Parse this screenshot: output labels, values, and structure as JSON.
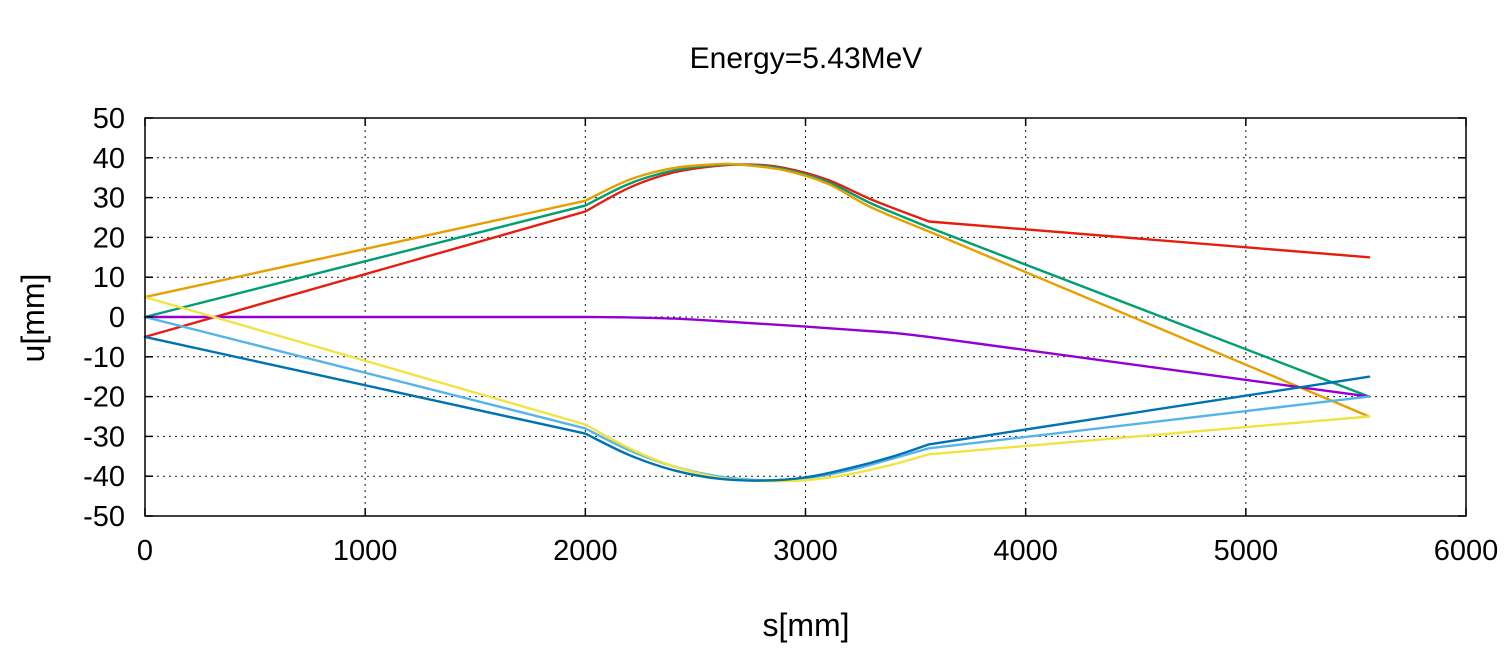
{
  "chart_data": {
    "type": "line",
    "title": "Energy=5.43MeV",
    "xlabel": "s[mm]",
    "ylabel": "u[mm]",
    "xlim": [
      0,
      6000
    ],
    "ylim": [
      -50,
      50
    ],
    "xticks": [
      0,
      1000,
      2000,
      3000,
      4000,
      5000,
      6000
    ],
    "yticks": [
      50,
      40,
      30,
      20,
      10,
      0,
      -10,
      -20,
      -30,
      -40,
      -50
    ],
    "grid": true,
    "legend": "none",
    "series": [
      {
        "color": "#e51e10",
        "points": [
          [
            0,
            -5
          ],
          [
            2000,
            26.5
          ],
          [
            2200,
            32.5
          ],
          [
            2400,
            36.3
          ],
          [
            2600,
            38.0
          ],
          [
            2750,
            38.3
          ],
          [
            2900,
            37.5
          ],
          [
            3100,
            34.5
          ],
          [
            3300,
            29.5
          ],
          [
            3560,
            24
          ],
          [
            5560,
            15
          ]
        ]
      },
      {
        "color": "#009e73",
        "points": [
          [
            0,
            0
          ],
          [
            2000,
            28
          ],
          [
            2200,
            33.5
          ],
          [
            2400,
            36.8
          ],
          [
            2600,
            38.2
          ],
          [
            2750,
            38.2
          ],
          [
            2900,
            37.2
          ],
          [
            3100,
            34
          ],
          [
            3300,
            28.5
          ],
          [
            3560,
            22.5
          ],
          [
            5560,
            -20
          ]
        ]
      },
      {
        "color": "#e69f00",
        "points": [
          [
            0,
            5
          ],
          [
            2000,
            29.2
          ],
          [
            2200,
            34.5
          ],
          [
            2400,
            37.4
          ],
          [
            2600,
            38.4
          ],
          [
            2700,
            38.3
          ],
          [
            2900,
            36.9
          ],
          [
            3100,
            33.5
          ],
          [
            3300,
            27.5
          ],
          [
            3560,
            21.5
          ],
          [
            5560,
            -25
          ]
        ]
      },
      {
        "color": "#9400d3",
        "points": [
          [
            0,
            0
          ],
          [
            2000,
            0
          ],
          [
            2200,
            -0.1
          ],
          [
            2400,
            -0.4
          ],
          [
            2600,
            -1.0
          ],
          [
            2800,
            -1.7
          ],
          [
            3000,
            -2.4
          ],
          [
            3200,
            -3.2
          ],
          [
            3400,
            -4.0
          ],
          [
            3560,
            -5
          ],
          [
            5560,
            -20
          ]
        ]
      },
      {
        "color": "#56b4e9",
        "points": [
          [
            0,
            0
          ],
          [
            2000,
            -28
          ],
          [
            2200,
            -33.5
          ],
          [
            2400,
            -37.5
          ],
          [
            2600,
            -40
          ],
          [
            2800,
            -41
          ],
          [
            3000,
            -40.5
          ],
          [
            3200,
            -38.5
          ],
          [
            3400,
            -35.5
          ],
          [
            3560,
            -33
          ],
          [
            5560,
            -20
          ]
        ]
      },
      {
        "color": "#f0e442",
        "points": [
          [
            0,
            5
          ],
          [
            2000,
            -27
          ],
          [
            2200,
            -33
          ],
          [
            2400,
            -37.5
          ],
          [
            2600,
            -40.3
          ],
          [
            2800,
            -41.2
          ],
          [
            3000,
            -41
          ],
          [
            3200,
            -39.5
          ],
          [
            3400,
            -37
          ],
          [
            3560,
            -34.5
          ],
          [
            5560,
            -25
          ]
        ]
      },
      {
        "color": "#0072b2",
        "points": [
          [
            0,
            -5
          ],
          [
            2000,
            -29.3
          ],
          [
            2200,
            -34.7
          ],
          [
            2400,
            -38.5
          ],
          [
            2600,
            -40.6
          ],
          [
            2800,
            -41.1
          ],
          [
            3000,
            -40.3
          ],
          [
            3200,
            -38
          ],
          [
            3400,
            -35
          ],
          [
            3560,
            -32
          ],
          [
            5560,
            -15
          ]
        ]
      }
    ]
  }
}
